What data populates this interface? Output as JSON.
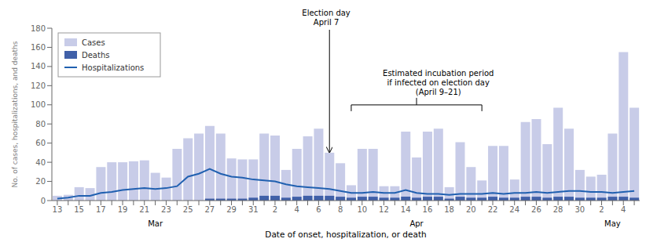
{
  "chart_data": {
    "type": "bar",
    "categories": [
      "13",
      null,
      "15",
      null,
      "17",
      null,
      "19",
      null,
      "21",
      null,
      "23",
      null,
      "25",
      null,
      "27",
      null,
      "29",
      null,
      "31",
      null,
      "2",
      null,
      "4",
      null,
      "6",
      null,
      "8",
      null,
      "10",
      null,
      "12",
      null,
      "14",
      null,
      "16",
      null,
      "18",
      null,
      "20",
      null,
      "22",
      null,
      "24",
      null,
      "26",
      null,
      "28",
      null,
      "30",
      null,
      "2",
      null,
      "4",
      null
    ],
    "series": [
      {
        "name": "Cases",
        "type": "bar",
        "color": "#c8cce8",
        "values": [
          5,
          6,
          14,
          13,
          35,
          40,
          40,
          41,
          42,
          29,
          24,
          54,
          65,
          70,
          78,
          70,
          44,
          43,
          43,
          70,
          68,
          32,
          54,
          67,
          75,
          50,
          39,
          16,
          54,
          54,
          15,
          15,
          72,
          45,
          72,
          75,
          14,
          61,
          35,
          21,
          57,
          57,
          22,
          82,
          85,
          59,
          97,
          75,
          32,
          25,
          27,
          70,
          155,
          97
        ]
      },
      {
        "name": "Deaths",
        "type": "bar",
        "color": "#4060a8",
        "values": [
          0,
          0,
          0,
          0,
          0,
          0,
          0,
          0,
          0,
          0,
          0,
          0,
          0,
          0,
          2,
          2,
          2,
          2,
          3,
          5,
          5,
          3,
          4,
          5,
          5,
          5,
          4,
          3,
          4,
          4,
          3,
          3,
          4,
          3,
          4,
          4,
          2,
          4,
          3,
          3,
          4,
          3,
          3,
          4,
          4,
          3,
          4,
          4,
          3,
          3,
          3,
          4,
          4,
          3
        ]
      },
      {
        "name": "Hospitalizations",
        "type": "line",
        "color": "#2060b0",
        "values": [
          2,
          3,
          5,
          5,
          8,
          9,
          11,
          12,
          13,
          12,
          13,
          15,
          25,
          28,
          33,
          28,
          25,
          24,
          22,
          21,
          20,
          17,
          15,
          14,
          13,
          12,
          10,
          8,
          8,
          9,
          8,
          8,
          11,
          8,
          7,
          7,
          6,
          7,
          7,
          7,
          8,
          7,
          8,
          8,
          9,
          8,
          9,
          10,
          10,
          9,
          9,
          8,
          9,
          10
        ]
      }
    ],
    "ylabel": "No. of cases, hospitalizations, and deaths",
    "xlabel": "Date of onset, hospitalization, or death",
    "ylim": [
      0,
      180
    ],
    "yticks": [
      0,
      20,
      40,
      60,
      80,
      100,
      120,
      140,
      160,
      180
    ],
    "annotations": [
      {
        "text": "Election day\nApril 7",
        "x": 25
      },
      {
        "text": "Estimated incubation period\nif infected on election day\n(April 9–21)",
        "x": [
          27,
          39
        ]
      },
      {
        "text": "Mar",
        "x": 9
      },
      {
        "text": "Apr",
        "x": 33
      },
      {
        "text": "May",
        "x": 51
      }
    ],
    "legend": "upper left",
    "grid": false
  }
}
